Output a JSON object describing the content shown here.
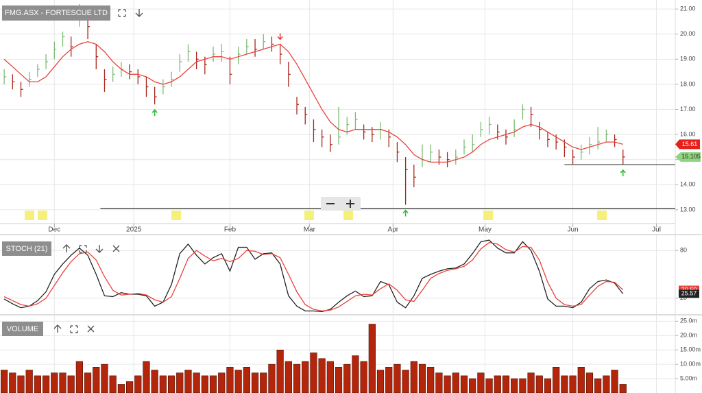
{
  "chart_data": [
    {
      "type": "ohlc",
      "title": "FMG.ASX - FORTESCUE LTD",
      "x": [
        0,
        2,
        4,
        6,
        8,
        10,
        12,
        14,
        16,
        18,
        20,
        22,
        24,
        26,
        28,
        30,
        32,
        34,
        36,
        38,
        40,
        42,
        44,
        46,
        48,
        50,
        52,
        54,
        56,
        58,
        60,
        62,
        64,
        66,
        68,
        70,
        72,
        74,
        76,
        78,
        80,
        82,
        84,
        86,
        88,
        90,
        92,
        94,
        96,
        98,
        100,
        102,
        104,
        106,
        108,
        110,
        112,
        114,
        116,
        118,
        120,
        122,
        124,
        126,
        128,
        130,
        132,
        134,
        136,
        138,
        140,
        142,
        144,
        146,
        148
      ],
      "high": [
        18.6,
        18.4,
        18.1,
        18.5,
        18.8,
        19.2,
        19.7,
        20.1,
        19.9,
        21.2,
        20.9,
        19.6,
        18.6,
        18.7,
        18.9,
        18.8,
        18.6,
        18.3,
        17.9,
        18.2,
        18.5,
        19.2,
        19.6,
        19.3,
        19.1,
        19.5,
        19.6,
        19.1,
        19.5,
        19.8,
        19.8,
        20.0,
        19.9,
        19.6,
        18.9,
        17.5,
        17.1,
        16.6,
        16.2,
        16.0,
        17.1,
        16.7,
        16.9,
        16.4,
        16.3,
        16.5,
        16.2,
        15.7,
        15.1,
        14.8,
        15.6,
        15.6,
        15.4,
        15.3,
        15.4,
        15.8,
        16.0,
        16.5,
        16.7,
        16.4,
        16.2,
        16.6,
        17.2,
        17.1,
        16.5,
        16.1,
        16.0,
        15.8,
        15.4,
        15.6,
        15.9,
        16.3,
        16.2,
        16.0,
        15.4
      ],
      "low": [
        18.0,
        17.8,
        17.5,
        17.9,
        18.3,
        18.6,
        19.0,
        19.5,
        19.1,
        20.3,
        19.8,
        18.6,
        17.7,
        18.1,
        18.3,
        18.2,
        18.0,
        17.5,
        17.2,
        17.6,
        17.9,
        18.5,
        18.9,
        18.6,
        18.4,
        18.9,
        18.9,
        18.0,
        18.8,
        19.2,
        19.1,
        19.4,
        19.3,
        18.8,
        17.9,
        16.8,
        16.4,
        15.7,
        15.5,
        15.3,
        15.6,
        16.0,
        16.2,
        15.8,
        15.7,
        15.8,
        15.5,
        14.9,
        13.2,
        13.9,
        14.7,
        14.9,
        14.8,
        14.7,
        14.8,
        15.2,
        15.3,
        15.9,
        16.0,
        15.8,
        15.6,
        15.9,
        16.6,
        16.3,
        15.8,
        15.5,
        15.4,
        15.1,
        14.8,
        15.0,
        15.2,
        15.4,
        15.7,
        15.5,
        14.8
      ],
      "close": [
        18.3,
        18.1,
        17.8,
        18.2,
        18.6,
        18.9,
        19.4,
        19.9,
        19.5,
        20.9,
        20.3,
        19.1,
        18.2,
        18.4,
        18.6,
        18.5,
        18.3,
        17.9,
        17.5,
        17.9,
        18.2,
        18.9,
        19.3,
        19.0,
        18.8,
        19.2,
        19.3,
        18.4,
        19.2,
        19.5,
        19.4,
        19.7,
        19.6,
        19.2,
        18.4,
        17.2,
        16.8,
        16.2,
        15.9,
        15.6,
        15.9,
        16.4,
        16.6,
        16.1,
        16.0,
        16.2,
        15.9,
        15.3,
        14.6,
        14.3,
        15.0,
        15.3,
        15.1,
        15.0,
        15.1,
        15.5,
        15.6,
        16.2,
        16.4,
        16.1,
        15.9,
        16.2,
        17.0,
        16.8,
        16.2,
        15.8,
        15.7,
        15.5,
        15.1,
        15.3,
        15.6,
        15.7,
        16.0,
        15.8,
        15.105
      ],
      "average": {
        "color": "#e8413a",
        "values": [
          19.0,
          18.7,
          18.4,
          18.1,
          18.1,
          18.3,
          18.7,
          19.1,
          19.4,
          19.6,
          19.7,
          19.6,
          19.3,
          18.9,
          18.6,
          18.4,
          18.4,
          18.3,
          18.1,
          18.0,
          18.1,
          18.3,
          18.6,
          18.9,
          19.0,
          19.1,
          19.1,
          19.0,
          19.1,
          19.2,
          19.3,
          19.4,
          19.5,
          19.6,
          19.3,
          18.8,
          18.2,
          17.6,
          17.0,
          16.5,
          16.2,
          16.1,
          16.2,
          16.2,
          16.2,
          16.2,
          16.1,
          15.9,
          15.6,
          15.2,
          15.0,
          14.9,
          14.9,
          14.9,
          15.0,
          15.1,
          15.3,
          15.6,
          15.8,
          15.9,
          16.0,
          16.1,
          16.3,
          16.4,
          16.3,
          16.1,
          15.9,
          15.7,
          15.5,
          15.4,
          15.5,
          15.6,
          15.7,
          15.7,
          15.61
        ]
      },
      "up_color": "#7dbb74",
      "down_color": "#a8261a",
      "xlim": [
        -1,
        160.5
      ],
      "xticks": [
        {
          "value": 12,
          "label": "Dec"
        },
        {
          "value": 31,
          "label": "2025"
        },
        {
          "value": 54,
          "label": "Feb"
        },
        {
          "value": 73,
          "label": "Mar"
        },
        {
          "value": 93,
          "label": "Apr"
        },
        {
          "value": 115,
          "label": "May"
        },
        {
          "value": 136,
          "label": "Jun"
        },
        {
          "value": 156,
          "label": "Jul"
        }
      ],
      "ylim": [
        12.45,
        21.36
      ],
      "yticks": [
        {
          "value": 13,
          "label": "13.00"
        },
        {
          "value": 14,
          "label": "14.00"
        },
        {
          "value": 15,
          "label": "15.00"
        },
        {
          "value": 16,
          "label": "16.00"
        },
        {
          "value": 17,
          "label": "17.00"
        },
        {
          "value": 18,
          "label": "18.00"
        },
        {
          "value": 19,
          "label": "19.00"
        },
        {
          "value": 20,
          "label": "20.00"
        },
        {
          "value": 21,
          "label": "21.00"
        }
      ],
      "grid": true,
      "hlines": [
        {
          "value": 13.05,
          "from": 23
        },
        {
          "value": 14.8,
          "from": 134
        }
      ],
      "buy_signals": [
        36,
        96,
        148
      ],
      "sell_signals": [
        66
      ]
    },
    {
      "type": "line",
      "title": "STOCH (21)",
      "series": [
        {
          "color": "#222222",
          "values": [
            19,
            13,
            8,
            10,
            17,
            28,
            50,
            63,
            74,
            83,
            74,
            50,
            23,
            22,
            27,
            25,
            25,
            23,
            10,
            15,
            37,
            76,
            88,
            74,
            63,
            71,
            76,
            54,
            84,
            84,
            69,
            76,
            77,
            63,
            23,
            10,
            4,
            4,
            3,
            6,
            15,
            23,
            29,
            22,
            23,
            41,
            37,
            15,
            8,
            23,
            45,
            50,
            54,
            57,
            58,
            63,
            76,
            91,
            93,
            83,
            77,
            77,
            91,
            80,
            54,
            19,
            10,
            10,
            8,
            15,
            32,
            41,
            43,
            39,
            25.57
          ]
        },
        {
          "color": "#e8413a",
          "last_label": "30.60",
          "values": [
            22,
            17,
            12,
            10,
            13,
            20,
            36,
            52,
            66,
            76,
            78,
            68,
            47,
            30,
            24,
            25,
            26,
            24,
            18,
            15,
            22,
            45,
            70,
            80,
            73,
            67,
            70,
            66,
            70,
            80,
            79,
            75,
            76,
            71,
            50,
            28,
            12,
            6,
            4,
            5,
            9,
            16,
            23,
            25,
            24,
            32,
            38,
            30,
            18,
            16,
            30,
            45,
            51,
            55,
            57,
            60,
            68,
            82,
            90,
            88,
            81,
            78,
            85,
            84,
            68,
            40,
            20,
            12,
            10,
            12,
            24,
            35,
            41,
            40,
            30.6
          ]
        }
      ],
      "ylim": [
        0,
        100
      ],
      "yticks": [
        20,
        80
      ],
      "grid": true
    },
    {
      "type": "bar",
      "title": "VOLUME",
      "color": "#b3260c",
      "values": [
        8,
        7,
        6,
        8,
        6,
        6,
        7,
        7,
        6,
        11,
        7,
        9,
        10,
        6,
        3,
        4,
        6,
        11,
        8,
        6,
        6,
        7,
        8,
        7,
        6,
        6,
        7,
        9,
        8,
        9,
        7,
        7,
        10,
        15,
        11,
        10,
        11,
        14,
        12,
        11,
        9,
        10,
        13,
        11,
        24,
        8,
        9,
        10,
        8,
        11,
        10,
        9,
        7,
        6,
        7,
        6,
        5,
        7,
        5,
        6,
        6,
        5,
        5,
        7,
        6,
        5,
        9,
        6,
        6,
        9,
        7,
        5,
        6,
        8,
        3
      ],
      "ylim": [
        0,
        27
      ],
      "yticks": [
        {
          "value": 5,
          "label": "5.00m"
        },
        {
          "value": 10,
          "label": "10.00m"
        },
        {
          "value": 15,
          "label": "15.00m"
        },
        {
          "value": 20,
          "label": "20.0m"
        },
        {
          "value": 25,
          "label": "25.0m"
        }
      ],
      "grid": true
    }
  ]
}
